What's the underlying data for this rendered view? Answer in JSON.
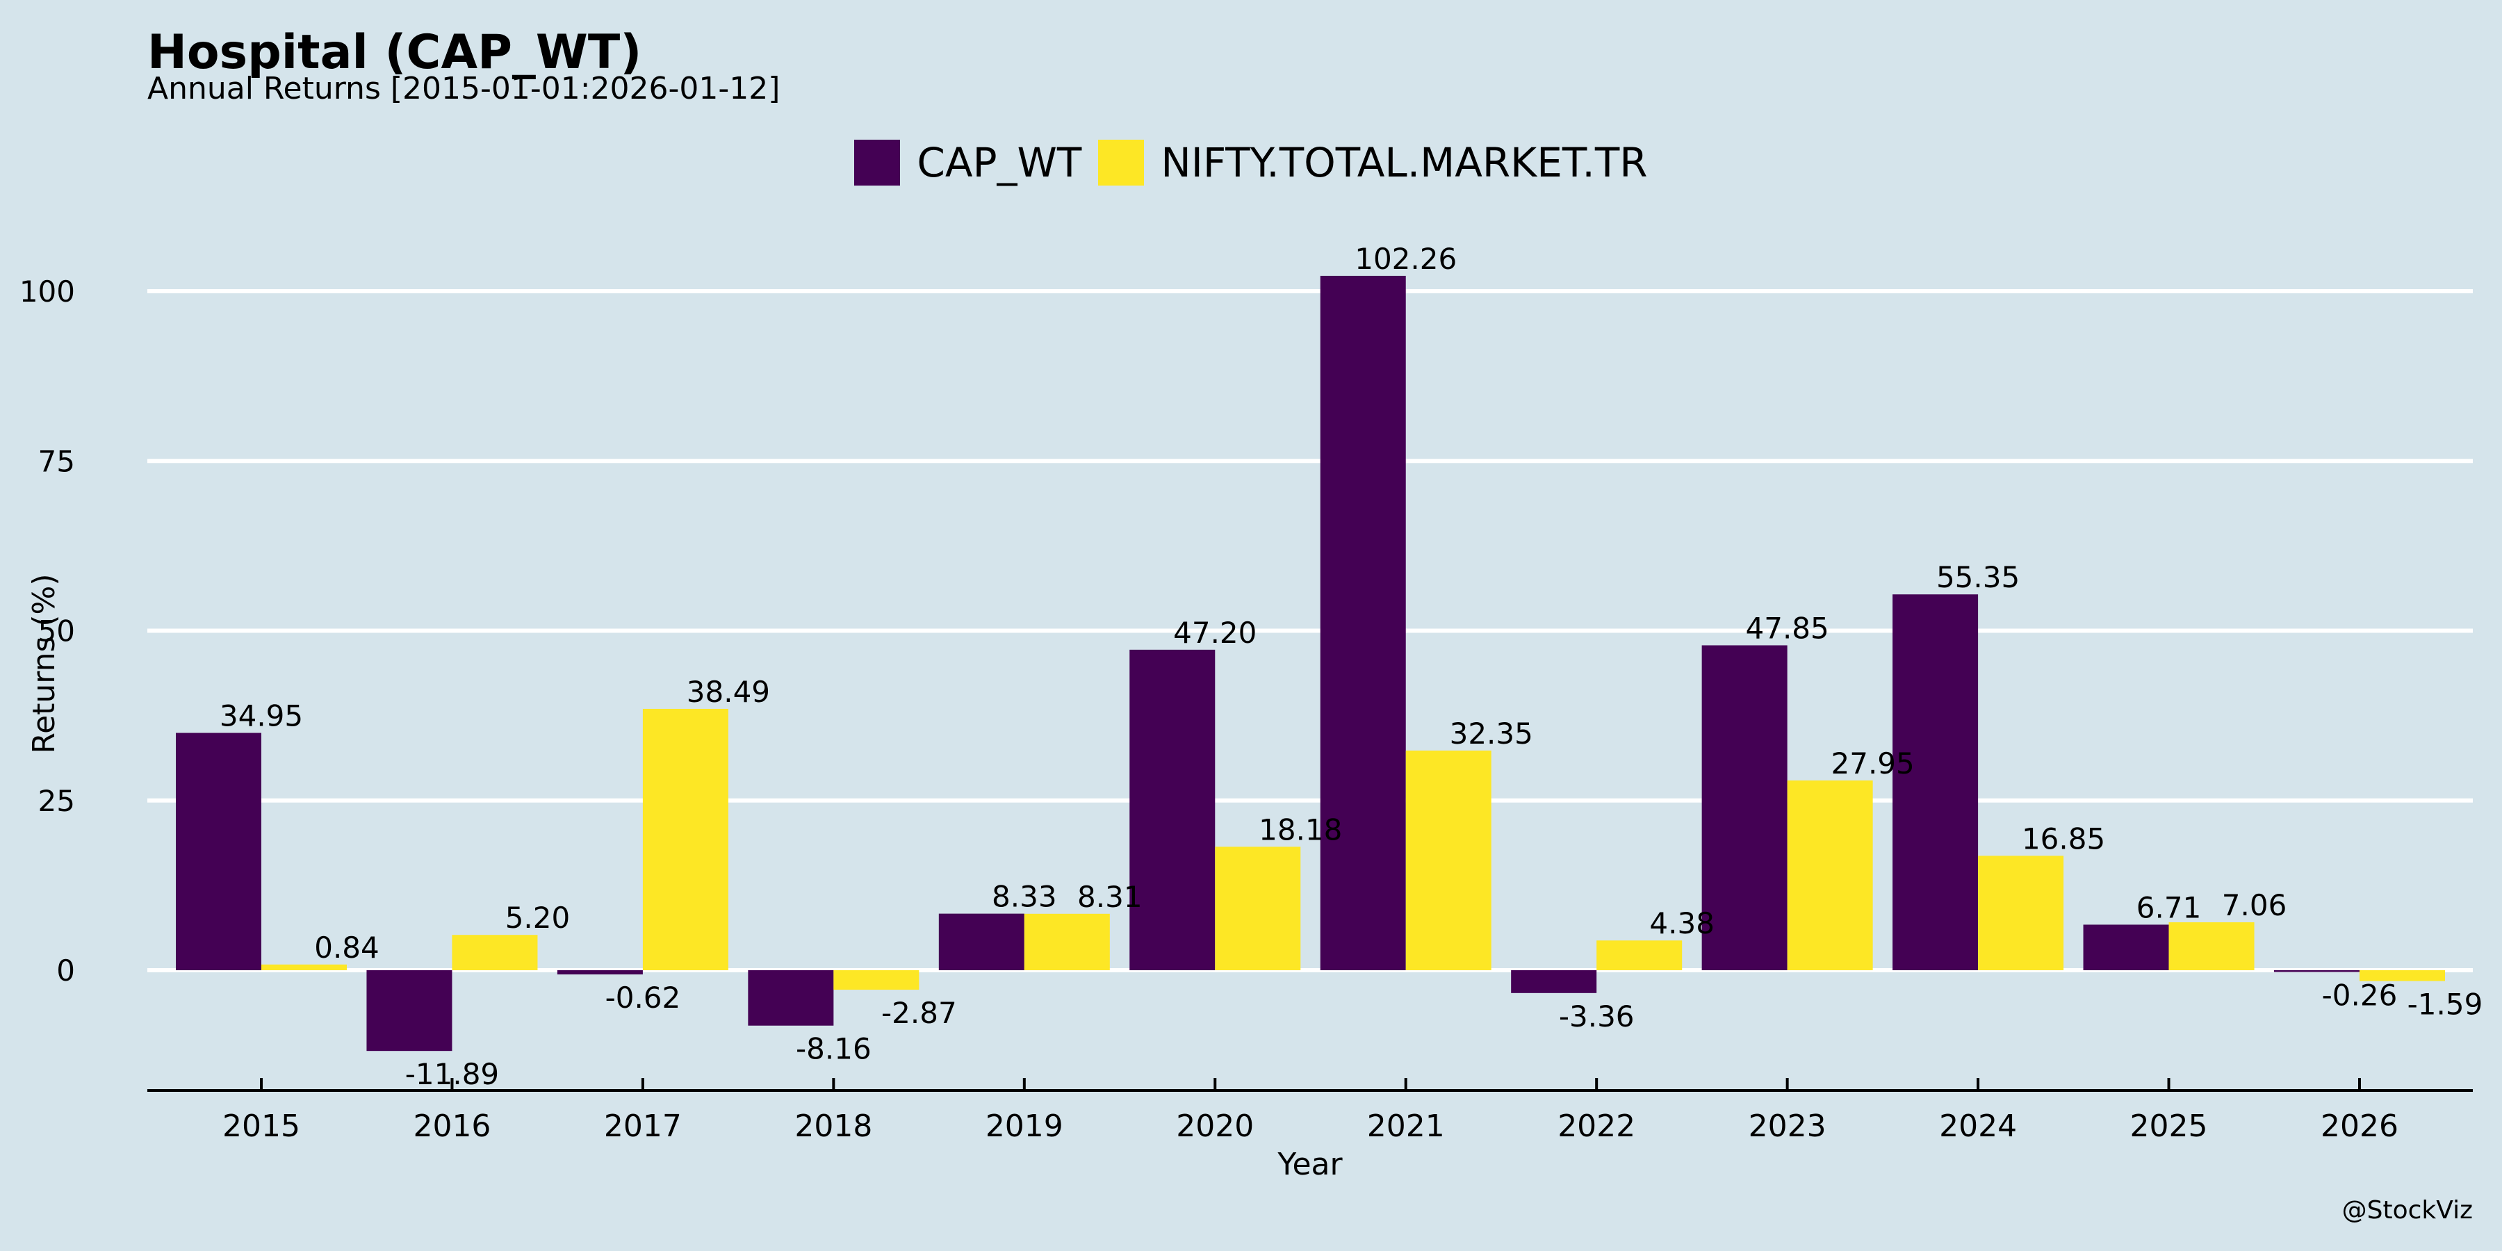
{
  "header": {
    "title": "Hospital (CAP_WT)",
    "subtitle": "Annual Returns [2015-01-01:2026-01-12]"
  },
  "watermark": "@StockViz",
  "colors": {
    "background": "#d5e4eb",
    "series_1": "#440154",
    "series_2": "#fde725",
    "grid": "#ffffff",
    "axis": "#000000"
  },
  "chart_data": {
    "type": "bar",
    "title": "Hospital (CAP_WT)",
    "subtitle": "Annual Returns [2015-01-01:2026-01-12]",
    "xlabel": "Year",
    "ylabel": "Returns (%)",
    "categories": [
      "2015",
      "2016",
      "2017",
      "2018",
      "2019",
      "2020",
      "2021",
      "2022",
      "2023",
      "2024",
      "2025",
      "2026"
    ],
    "series": [
      {
        "name": "CAP_WT",
        "color": "#440154",
        "values": [
          34.95,
          -11.89,
          -0.62,
          -8.16,
          8.33,
          47.2,
          102.26,
          -3.36,
          47.85,
          55.35,
          6.71,
          -0.26
        ]
      },
      {
        "name": "NIFTY.TOTAL.MARKET.TR",
        "color": "#fde725",
        "values": [
          0.84,
          5.2,
          38.49,
          -2.87,
          8.31,
          18.18,
          32.35,
          4.38,
          27.95,
          16.85,
          7.06,
          -1.59
        ]
      }
    ],
    "ylim": [
      -17.5,
      104
    ],
    "yticks": [
      0,
      25,
      50,
      75,
      100
    ],
    "grid": true,
    "legend": "top-center"
  }
}
